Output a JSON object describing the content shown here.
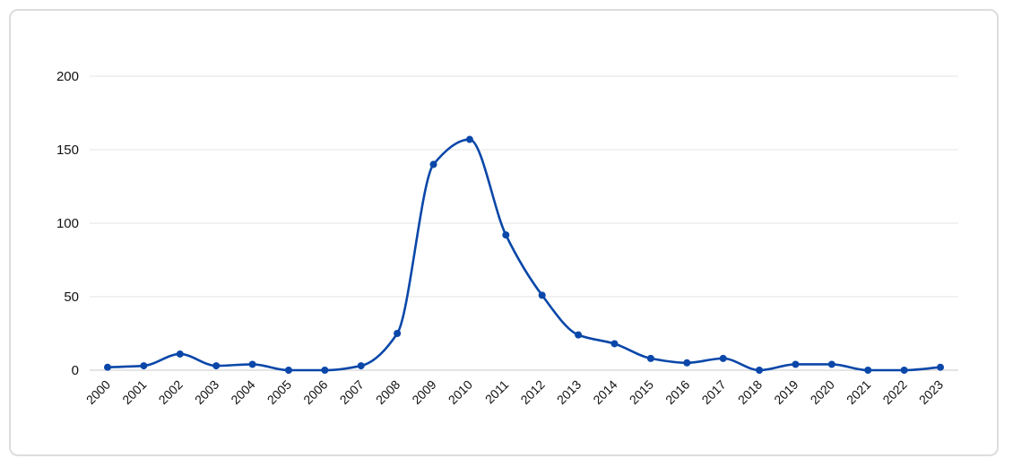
{
  "chart_data": {
    "type": "line",
    "title": "",
    "xlabel": "",
    "ylabel": "",
    "x": [
      "2000",
      "2001",
      "2002",
      "2003",
      "2004",
      "2005",
      "2006",
      "2007",
      "2008",
      "2009",
      "2010",
      "2011",
      "2012",
      "2013",
      "2014",
      "2015",
      "2016",
      "2017",
      "2018",
      "2019",
      "2020",
      "2021",
      "2022",
      "2023"
    ],
    "series": [
      {
        "values": [
          2,
          3,
          11,
          3,
          4,
          0,
          0,
          3,
          25,
          140,
          157,
          92,
          51,
          24,
          18,
          8,
          5,
          8,
          0,
          4,
          4,
          0,
          0,
          2
        ]
      }
    ],
    "ylim": [
      0,
      200
    ],
    "yticks": [
      "0",
      "50",
      "100",
      "150",
      "200"
    ],
    "grid": true,
    "legend": "none",
    "colors": {
      "line": "#0a47a9",
      "marker": "#0a47a9",
      "grid": "#e3e3e3"
    }
  }
}
